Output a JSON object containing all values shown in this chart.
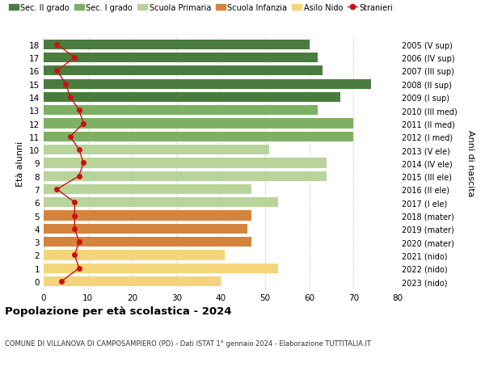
{
  "ages": [
    18,
    17,
    16,
    15,
    14,
    13,
    12,
    11,
    10,
    9,
    8,
    7,
    6,
    5,
    4,
    3,
    2,
    1,
    0
  ],
  "years": [
    "2005 (V sup)",
    "2006 (IV sup)",
    "2007 (III sup)",
    "2008 (II sup)",
    "2009 (I sup)",
    "2010 (III med)",
    "2011 (II med)",
    "2012 (I med)",
    "2013 (V ele)",
    "2014 (IV ele)",
    "2015 (III ele)",
    "2016 (II ele)",
    "2017 (I ele)",
    "2018 (mater)",
    "2019 (mater)",
    "2020 (mater)",
    "2021 (nido)",
    "2022 (nido)",
    "2023 (nido)"
  ],
  "bar_values": [
    60,
    62,
    63,
    74,
    67,
    62,
    70,
    70,
    51,
    64,
    64,
    47,
    53,
    47,
    46,
    47,
    41,
    53,
    40
  ],
  "stranieri": [
    3,
    7,
    3,
    5,
    6,
    8,
    9,
    6,
    8,
    9,
    8,
    3,
    7,
    7,
    7,
    8,
    7,
    8,
    4
  ],
  "bar_colors": [
    "#4a7c3f",
    "#4a7c3f",
    "#4a7c3f",
    "#4a7c3f",
    "#4a7c3f",
    "#7db065",
    "#7db065",
    "#7db065",
    "#b8d49a",
    "#b8d49a",
    "#b8d49a",
    "#b8d49a",
    "#b8d49a",
    "#d4843c",
    "#d4843c",
    "#d4843c",
    "#f5d57a",
    "#f5d57a",
    "#f5d57a"
  ],
  "legend_labels": [
    "Sec. II grado",
    "Sec. I grado",
    "Scuola Primaria",
    "Scuola Infanzia",
    "Asilo Nido",
    "Stranieri"
  ],
  "legend_colors": [
    "#4a7c3f",
    "#7db065",
    "#b8d49a",
    "#d4843c",
    "#f5d57a",
    "#cc1111"
  ],
  "ylabel_left": "Età alunni",
  "ylabel_right": "Anni di nascita",
  "xlim": [
    0,
    80
  ],
  "xticks": [
    0,
    10,
    20,
    30,
    40,
    50,
    60,
    70,
    80
  ],
  "title": "Popolazione per età scolastica - 2024",
  "subtitle": "COMUNE DI VILLANOVA DI CAMPOSAMPIERO (PD) - Dati ISTAT 1° gennaio 2024 - Elaborazione TUTTITALIA.IT",
  "bg_color": "#ffffff",
  "bar_height": 0.75,
  "stranieri_color": "#cc1111",
  "grid_color": "#cccccc"
}
